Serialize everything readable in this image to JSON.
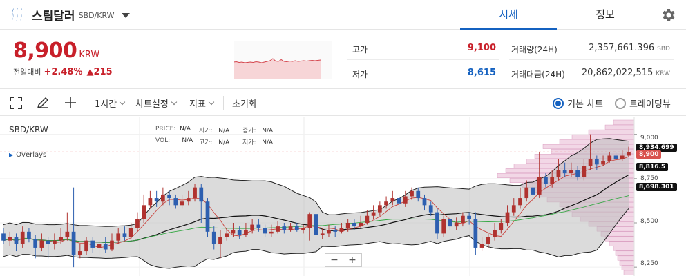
{
  "header": {
    "coin_name": "스팀달러",
    "pair": "SBD/KRW",
    "tabs": [
      {
        "label": "시세"
      },
      {
        "label": "정보"
      }
    ],
    "icons": [
      "steem-logo-icon",
      "chevron-down-icon",
      "gear-icon"
    ]
  },
  "summary": {
    "price": "8,900",
    "currency": "KRW",
    "change_label": "전일대비",
    "change_pct": "+2.48%",
    "change_amount": "▲215",
    "high_label": "고가",
    "high_value": "9,100",
    "low_label": "저가",
    "low_value": "8,615",
    "volume_label": "거래량(24H)",
    "volume_value": "2,357,661.396",
    "volume_unit": "SBD",
    "amount_label": "거래대금(24H)",
    "amount_value": "20,862,022,515",
    "amount_unit": "KRW",
    "mini_chart": [
      62,
      61,
      63,
      62,
      64,
      63,
      62,
      63,
      61,
      62,
      64,
      62,
      60,
      58,
      52,
      59,
      60,
      55,
      60,
      61,
      59,
      60,
      58,
      60,
      59,
      58,
      59,
      58,
      57,
      58,
      57,
      56
    ]
  },
  "toolbar": {
    "interval": "1시간",
    "chart_settings": "차트설정",
    "indicator": "지표",
    "reset": "초기화",
    "basic_chart": "기본 차트",
    "tradingview": "트레이딩뷰",
    "icons": [
      "fullscreen-icon",
      "pencil-icon",
      "crosshair-icon"
    ]
  },
  "chart": {
    "pair": "SBD/KRW",
    "overlays": "Overlays",
    "price_label": "PRICE:",
    "price_val": "N/A",
    "open_label": "시가:",
    "open_val": "N/A",
    "change_label": "증가:",
    "change_val": "N/A",
    "vol_label": "VOL:",
    "vol_val": "N/A",
    "high_label": "고가:",
    "high_val": "N/A",
    "low_label": "저가:",
    "low_val": "N/A",
    "y_ticks": [
      "9,000",
      "8,750",
      "8,500",
      "8,250"
    ],
    "tags": [
      {
        "text": "8,934.699",
        "color": "#111111"
      },
      {
        "text": "8,900",
        "color": "#d9534f"
      },
      {
        "text": "8,816.5",
        "color": "#111111"
      },
      {
        "text": "8,698.301",
        "color": "#111111"
      }
    ],
    "zoom_out": "−",
    "zoom_in": "+"
  },
  "chart_data": {
    "type": "candlestick",
    "interval": "1시간",
    "ylim": [
      8200,
      9100
    ],
    "y_ticks": [
      9000,
      8750,
      8500,
      8250
    ],
    "current_price": 8900,
    "bollinger_upper": 8934.699,
    "bollinger_middle": 8816.5,
    "bollinger_lower": 8698.301,
    "candles": [
      [
        8440,
        8400,
        8470,
        8380
      ],
      [
        8400,
        8420,
        8450,
        8370
      ],
      [
        8420,
        8380,
        8440,
        8340
      ],
      [
        8380,
        8450,
        8480,
        8360
      ],
      [
        8450,
        8410,
        8470,
        8390
      ],
      [
        8410,
        8360,
        8430,
        8300
      ],
      [
        8360,
        8400,
        8440,
        8340
      ],
      [
        8400,
        8380,
        8420,
        8300
      ],
      [
        8380,
        8400,
        8440,
        8350
      ],
      [
        8400,
        8420,
        8470,
        8380
      ],
      [
        8420,
        8450,
        8560,
        8400
      ],
      [
        8450,
        8320,
        8700,
        8250
      ],
      [
        8320,
        8340,
        8380,
        8300
      ],
      [
        8340,
        8400,
        8420,
        8320
      ],
      [
        8400,
        8360,
        8420,
        8330
      ],
      [
        8360,
        8380,
        8400,
        8320
      ],
      [
        8380,
        8350,
        8420,
        8330
      ],
      [
        8350,
        8400,
        8440,
        8340
      ],
      [
        8400,
        8440,
        8470,
        8380
      ],
      [
        8440,
        8420,
        8480,
        8400
      ],
      [
        8420,
        8470,
        8500,
        8410
      ],
      [
        8470,
        8520,
        8560,
        8450
      ],
      [
        8520,
        8600,
        8660,
        8500
      ],
      [
        8600,
        8640,
        8680,
        8580
      ],
      [
        8640,
        8620,
        8680,
        8590
      ],
      [
        8620,
        8660,
        8700,
        8600
      ],
      [
        8660,
        8640,
        8680,
        8600
      ],
      [
        8640,
        8600,
        8660,
        8580
      ],
      [
        8600,
        8620,
        8660,
        8580
      ],
      [
        8620,
        8640,
        8680,
        8600
      ],
      [
        8640,
        8700,
        8720,
        8620
      ],
      [
        8700,
        8620,
        8720,
        8500
      ],
      [
        8620,
        8450,
        8640,
        8420
      ],
      [
        8450,
        8380,
        8480,
        8350
      ],
      [
        8380,
        8420,
        8460,
        8300
      ],
      [
        8420,
        8440,
        8470,
        8400
      ],
      [
        8440,
        8460,
        8500,
        8420
      ],
      [
        8460,
        8430,
        8480,
        8410
      ],
      [
        8430,
        8460,
        8500,
        8420
      ],
      [
        8460,
        8490,
        8520,
        8440
      ],
      [
        8490,
        8470,
        8520,
        8450
      ],
      [
        8470,
        8440,
        8490,
        8420
      ],
      [
        8440,
        8450,
        8490,
        8420
      ],
      [
        8450,
        8480,
        8510,
        8440
      ],
      [
        8480,
        8460,
        8500,
        8440
      ],
      [
        8460,
        8480,
        8500,
        8450
      ],
      [
        8480,
        8460,
        8500,
        8450
      ],
      [
        8460,
        8470,
        8490,
        8440
      ],
      [
        8470,
        8550,
        8560,
        8400
      ],
      [
        8550,
        8430,
        8560,
        8410
      ],
      [
        8430,
        8440,
        8470,
        8410
      ],
      [
        8440,
        8460,
        8490,
        8420
      ],
      [
        8460,
        8450,
        8480,
        8420
      ],
      [
        8450,
        8470,
        8500,
        8440
      ],
      [
        8470,
        8500,
        8520,
        8450
      ],
      [
        8500,
        8480,
        8520,
        8460
      ],
      [
        8480,
        8500,
        8540,
        8470
      ],
      [
        8500,
        8540,
        8570,
        8490
      ],
      [
        8540,
        8560,
        8600,
        8520
      ],
      [
        8560,
        8600,
        8620,
        8540
      ],
      [
        8600,
        8620,
        8650,
        8580
      ],
      [
        8620,
        8640,
        8680,
        8600
      ],
      [
        8640,
        8610,
        8660,
        8580
      ],
      [
        8610,
        8650,
        8680,
        8590
      ],
      [
        8650,
        8680,
        8700,
        8630
      ],
      [
        8680,
        8640,
        8700,
        8620
      ],
      [
        8640,
        8600,
        8660,
        8570
      ],
      [
        8600,
        8560,
        8620,
        8540
      ],
      [
        8560,
        8440,
        8580,
        8410
      ],
      [
        8440,
        8520,
        8540,
        8420
      ],
      [
        8520,
        8480,
        8540,
        8460
      ],
      [
        8480,
        8500,
        8530,
        8460
      ],
      [
        8500,
        8540,
        8560,
        8480
      ],
      [
        8540,
        8520,
        8560,
        8490
      ],
      [
        8520,
        8360,
        8560,
        8320
      ],
      [
        8360,
        8380,
        8420,
        8340
      ],
      [
        8380,
        8420,
        8440,
        8360
      ],
      [
        8420,
        8460,
        8500,
        8400
      ],
      [
        8460,
        8500,
        8520,
        8440
      ],
      [
        8500,
        8560,
        8600,
        8480
      ],
      [
        8560,
        8600,
        8640,
        8540
      ],
      [
        8600,
        8640,
        8700,
        8580
      ],
      [
        8640,
        8700,
        8740,
        8620
      ],
      [
        8700,
        8660,
        8720,
        8640
      ],
      [
        8660,
        8760,
        8900,
        8640
      ],
      [
        8760,
        8720,
        8780,
        8700
      ],
      [
        8720,
        8760,
        8800,
        8700
      ],
      [
        8760,
        8800,
        8860,
        8740
      ],
      [
        8800,
        8780,
        8840,
        8760
      ],
      [
        8780,
        8800,
        8840,
        8760
      ],
      [
        8800,
        8760,
        8820,
        8740
      ],
      [
        8760,
        8820,
        8860,
        8740
      ],
      [
        8820,
        8860,
        9000,
        8800
      ],
      [
        8860,
        8830,
        8880,
        8800
      ],
      [
        8830,
        8850,
        8880,
        8820
      ],
      [
        8850,
        8880,
        8900,
        8840
      ],
      [
        8880,
        8860,
        8900,
        8840
      ],
      [
        8860,
        8880,
        8910,
        8850
      ],
      [
        8880,
        8900,
        8930,
        8870
      ]
    ]
  }
}
